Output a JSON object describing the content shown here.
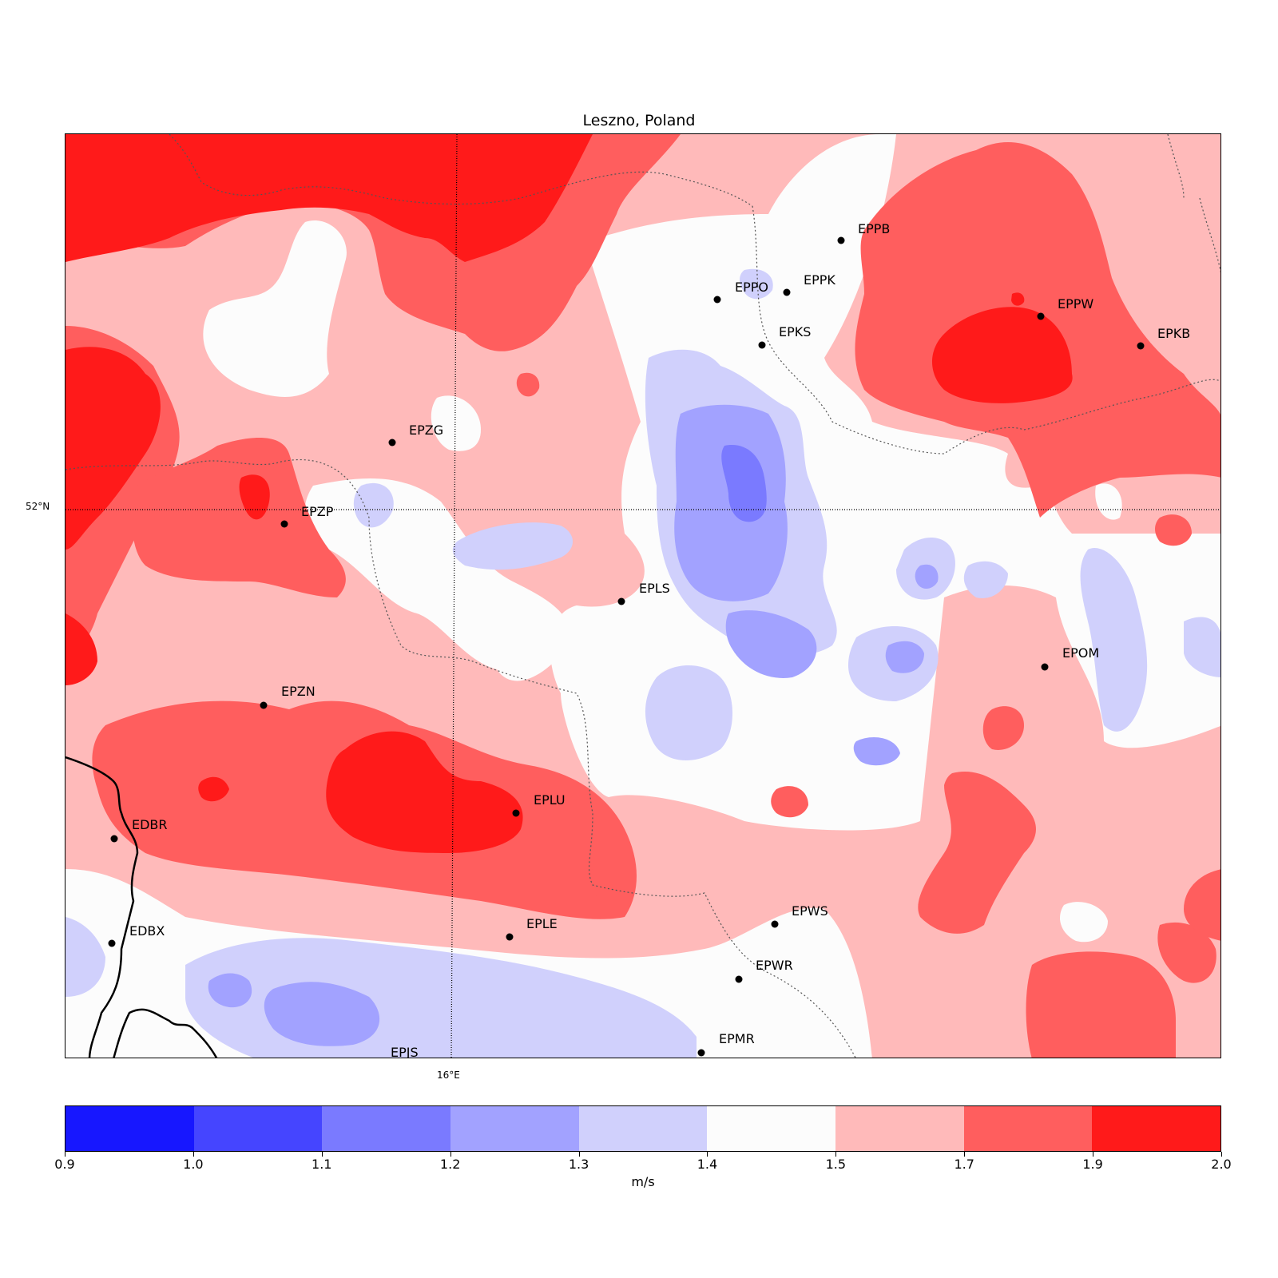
{
  "title": "Leszno, Poland",
  "grid_labels": {
    "latitude": "52°N",
    "longitude": "16°E"
  },
  "colorbar": {
    "unit": "m/s",
    "ticks": [
      "0.9",
      "1.0",
      "1.1",
      "1.2",
      "1.3",
      "1.4",
      "1.5",
      "1.7",
      "1.9",
      "2.0"
    ],
    "colors": [
      "#1717ff",
      "#4545ff",
      "#7a7aff",
      "#a2a2ff",
      "#d0d0fc",
      "#fcfcfc",
      "#ffbaba",
      "#ff5e5e",
      "#ff1a1a"
    ]
  },
  "stations": [
    {
      "code": "EPPB"
    },
    {
      "code": "EPPK"
    },
    {
      "code": "EPPO"
    },
    {
      "code": "EPPW"
    },
    {
      "code": "EPKB"
    },
    {
      "code": "EPKS"
    },
    {
      "code": "EPZG"
    },
    {
      "code": "EPZP"
    },
    {
      "code": "EPLS"
    },
    {
      "code": "EPOM"
    },
    {
      "code": "EPZN"
    },
    {
      "code": "EPLU"
    },
    {
      "code": "EDBR"
    },
    {
      "code": "EPWS"
    },
    {
      "code": "EPLE"
    },
    {
      "code": "EDBX"
    },
    {
      "code": "EPWR"
    },
    {
      "code": "EPMR"
    },
    {
      "code": "EPJS"
    }
  ]
}
